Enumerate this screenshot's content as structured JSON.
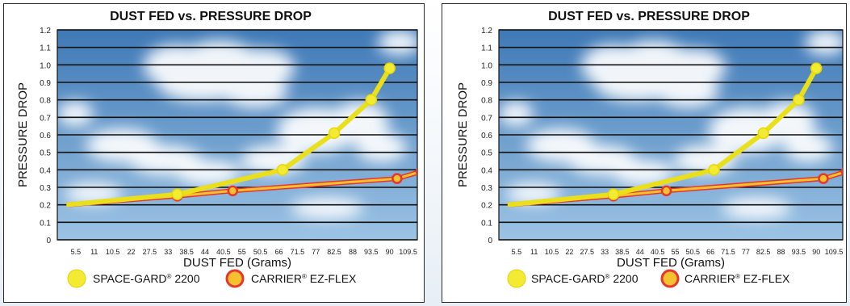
{
  "colors": {
    "space_gard_fill": "#f2ea33",
    "space_gard_line": "#e9df1a",
    "carrier_fill": "#f6c12f",
    "carrier_stroke": "#e8362c",
    "grid": "#111111",
    "sky_top": "#3f79b6",
    "sky_bottom": "#9cc3e4",
    "cloud": "#ffffff"
  },
  "chart_data": [
    {
      "type": "line",
      "title": "DUST FED vs. PRESSURE DROP",
      "xlabel": "DUST FED (Grams)",
      "ylabel": "PRESSURE DROP",
      "x_ticks": [
        "5.5",
        "11",
        "10.5",
        "22",
        "27.5",
        "33",
        "38.5",
        "44",
        "40.5",
        "55",
        "50.5",
        "66",
        "71.5",
        "77",
        "82.5",
        "88",
        "93.5",
        "90",
        "109.5"
      ],
      "y_ticks": [
        "0",
        "0.1",
        "0.2",
        "0.3",
        "0.4",
        "0.5",
        "0.6",
        "0.7",
        "0.8",
        "0.9",
        "1.0",
        "1.1",
        "1.2"
      ],
      "ylim": [
        0,
        1.2
      ],
      "grid": true,
      "legend_position": "bottom",
      "series": [
        {
          "name": "SPACE-GARD® 2200",
          "name_main": "SPACE-GARD",
          "name_sup": "®",
          "name_tail": " 2200",
          "x_tick_index": [
            -0.5,
            5.5,
            11.2,
            14,
            16,
            17
          ],
          "y": [
            0.2,
            0.26,
            0.4,
            0.61,
            0.8,
            0.98
          ],
          "marker_tick_index": [
            5.5,
            11.2,
            14,
            16,
            17
          ]
        },
        {
          "name": "CARRIER® EZ-FLEX",
          "name_main": "CARRIER",
          "name_sup": "®",
          "name_tail": " EZ-FLEX",
          "x_tick_index": [
            -0.5,
            5.5,
            8.5,
            17.4,
            18.7
          ],
          "y": [
            0.2,
            0.25,
            0.28,
            0.35,
            0.39
          ],
          "marker_tick_index": [
            5.5,
            8.5,
            17.4,
            18.7
          ]
        }
      ]
    },
    {
      "type": "line",
      "title": "DUST FED vs. PRESSURE DROP",
      "xlabel": "DUST FED (Grams)",
      "ylabel": "PRESSURE DROP",
      "x_ticks": [
        "5.5",
        "11",
        "10.5",
        "22",
        "27.5",
        "33",
        "38.5",
        "44",
        "40.5",
        "55",
        "50.5",
        "66",
        "71.5",
        "77",
        "82.5",
        "88",
        "93.5",
        "90",
        "109.5"
      ],
      "y_ticks": [
        "0",
        "0.1",
        "0.2",
        "0.3",
        "0.4",
        "0.5",
        "0.6",
        "0.7",
        "0.8",
        "0.9",
        "1.0",
        "1.1",
        "1.2"
      ],
      "ylim": [
        0,
        1.2
      ],
      "grid": true,
      "legend_position": "bottom",
      "series": [
        {
          "name": "SPACE-GARD® 2200",
          "name_main": "SPACE-GARD",
          "name_sup": "®",
          "name_tail": " 2200",
          "x_tick_index": [
            -0.5,
            5.5,
            11.2,
            14,
            16,
            17
          ],
          "y": [
            0.2,
            0.26,
            0.4,
            0.61,
            0.8,
            0.98
          ],
          "marker_tick_index": [
            5.5,
            11.2,
            14,
            16,
            17
          ]
        },
        {
          "name": "CARRIER® EZ-FLEX",
          "name_main": "CARRIER",
          "name_sup": "®",
          "name_tail": " EZ-FLEX",
          "x_tick_index": [
            -0.5,
            5.5,
            8.5,
            17.4,
            18.7
          ],
          "y": [
            0.2,
            0.25,
            0.28,
            0.35,
            0.39
          ],
          "marker_tick_index": [
            5.5,
            8.5,
            17.4,
            18.7
          ]
        }
      ]
    }
  ]
}
